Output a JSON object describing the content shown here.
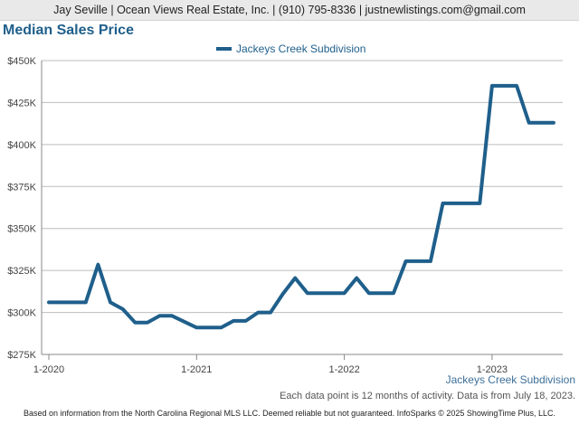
{
  "header": {
    "text": "Jay Seville | Ocean Views Real Estate, Inc. | (910) 795-8336 | justnewlistings.com@gmail.com"
  },
  "page_title": "Median Sales Price",
  "chart_data": {
    "type": "line",
    "title": "",
    "xlabel": "",
    "ylabel": "",
    "legend_position": "top-center",
    "grid": true,
    "ylim": [
      275000,
      450000
    ],
    "y_ticks": [
      275000,
      300000,
      325000,
      350000,
      375000,
      400000,
      425000,
      450000
    ],
    "y_tick_labels": [
      "$275K",
      "$300K",
      "$325K",
      "$350K",
      "$375K",
      "$400K",
      "$425K",
      "$450K"
    ],
    "x_ticks": [
      "2020-01",
      "2021-01",
      "2022-01",
      "2023-01"
    ],
    "x_tick_labels": [
      "1-2020",
      "1-2021",
      "1-2022",
      "1-2023"
    ],
    "xlim": [
      "2020-01",
      "2023-06"
    ],
    "x": [
      "2020-01",
      "2020-02",
      "2020-03",
      "2020-04",
      "2020-05",
      "2020-06",
      "2020-07",
      "2020-08",
      "2020-09",
      "2020-10",
      "2020-11",
      "2020-12",
      "2021-01",
      "2021-02",
      "2021-03",
      "2021-04",
      "2021-05",
      "2021-06",
      "2021-07",
      "2021-08",
      "2021-09",
      "2021-10",
      "2021-11",
      "2021-12",
      "2022-01",
      "2022-02",
      "2022-03",
      "2022-04",
      "2022-05",
      "2022-06",
      "2022-07",
      "2022-08",
      "2022-09",
      "2022-10",
      "2022-11",
      "2022-12",
      "2023-01",
      "2023-02",
      "2023-03",
      "2023-04",
      "2023-05",
      "2023-06"
    ],
    "series": [
      {
        "name": "Jackeys Creek Subdivision",
        "color": "#1f5f8b",
        "values": [
          306000,
          306000,
          306000,
          306000,
          328500,
          306000,
          302000,
          294000,
          294000,
          298000,
          298000,
          294500,
          291000,
          291000,
          291000,
          295000,
          295000,
          300000,
          300000,
          311000,
          320500,
          311500,
          311500,
          311500,
          311500,
          320500,
          311500,
          311500,
          311500,
          330500,
          330500,
          330500,
          365000,
          365000,
          365000,
          365000,
          435000,
          435000,
          435000,
          413000,
          413000,
          413000
        ]
      }
    ]
  },
  "subdivision_label": "Jackeys Creek Subdivision",
  "data_note": "Each data point is 12 months of activity. Data is from July 18, 2023.",
  "disclaimer": "Based on information from the North Carolina Regional MLS LLC. Deemed reliable but not guaranteed. InfoSparks © 2025 ShowingTime Plus, LLC."
}
